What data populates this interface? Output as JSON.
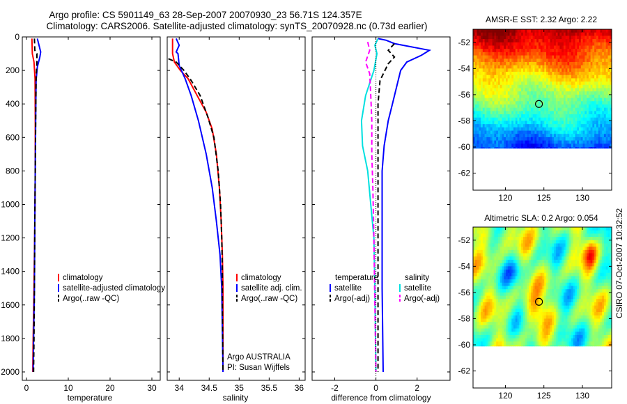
{
  "title_line1": "Argo profile: CS 5901149_63 28-Sep-2007 20070930_23 56.71S 124.357E",
  "title_line2": "Climatology: CARS2006. Satellite-adjusted climatology: synTS_20070928.nc (0.73d earlier)",
  "chart_data": [
    {
      "type": "line",
      "xlabel": "temperature",
      "xlim": [
        -1,
        32
      ],
      "ylim": [
        0,
        2050
      ],
      "y_reversed": true,
      "xticks": [
        0,
        10,
        20,
        30
      ],
      "yticks": [
        0,
        200,
        400,
        600,
        800,
        1000,
        1200,
        1400,
        1600,
        1800,
        2000
      ],
      "legend": "center",
      "series": [
        {
          "name": "climatology",
          "color": "#ff0000",
          "style": "solid",
          "points": [
            [
              1.3,
              10
            ],
            [
              1.4,
              100
            ],
            [
              1.8,
              150
            ],
            [
              2.05,
              250
            ],
            [
              2.1,
              500
            ],
            [
              2.1,
              800
            ],
            [
              2.0,
              1100
            ],
            [
              1.8,
              1500
            ],
            [
              1.6,
              1800
            ],
            [
              1.5,
              2000
            ]
          ]
        },
        {
          "name": "satellite-adjusted climatology",
          "color": "#0000ff",
          "style": "solid",
          "points": [
            [
              2.6,
              10
            ],
            [
              3.4,
              90
            ],
            [
              3.2,
              120
            ],
            [
              2.6,
              180
            ],
            [
              2.3,
              260
            ],
            [
              2.2,
              500
            ],
            [
              2.1,
              800
            ],
            [
              2.0,
              1100
            ],
            [
              1.9,
              1500
            ],
            [
              1.7,
              1800
            ],
            [
              1.6,
              2000
            ]
          ]
        },
        {
          "name": "Argo(..raw -QC)",
          "color": "#000000",
          "style": "dashed",
          "points": [
            [
              1.9,
              10
            ],
            [
              2.0,
              80
            ],
            [
              2.5,
              100
            ],
            [
              2.5,
              150
            ],
            [
              2.3,
              250
            ],
            [
              2.2,
              500
            ],
            [
              2.1,
              800
            ],
            [
              2.0,
              1100
            ],
            [
              1.9,
              1500
            ],
            [
              1.8,
              1800
            ],
            [
              1.7,
              2000
            ]
          ]
        }
      ]
    },
    {
      "type": "line",
      "xlabel": "salinity",
      "xlim": [
        33.8,
        36.1
      ],
      "ylim": [
        0,
        2050
      ],
      "y_reversed": true,
      "xticks": [
        34,
        34.5,
        35,
        35.5,
        36
      ],
      "legend": "center-right",
      "annotation": [
        "Argo AUSTRALIA",
        "PI: Susan Wijffels"
      ],
      "series": [
        {
          "name": "climatology",
          "color": "#ff0000",
          "style": "solid",
          "points": [
            [
              33.89,
              10
            ],
            [
              33.89,
              100
            ],
            [
              33.92,
              150
            ],
            [
              34.02,
              200
            ],
            [
              34.15,
              250
            ],
            [
              34.3,
              350
            ],
            [
              34.45,
              450
            ],
            [
              34.55,
              550
            ],
            [
              34.62,
              700
            ],
            [
              34.67,
              900
            ],
            [
              34.7,
              1100
            ],
            [
              34.72,
              1300
            ],
            [
              34.73,
              1500
            ],
            [
              34.73,
              2000
            ]
          ]
        },
        {
          "name": "satellite adj. clim.",
          "color": "#0000ff",
          "style": "solid",
          "points": [
            [
              33.95,
              10
            ],
            [
              34.0,
              50
            ],
            [
              33.95,
              90
            ],
            [
              33.98,
              100
            ],
            [
              34.0,
              170
            ],
            [
              34.1,
              250
            ],
            [
              34.2,
              350
            ],
            [
              34.32,
              500
            ],
            [
              34.45,
              700
            ],
            [
              34.55,
              900
            ],
            [
              34.62,
              1100
            ],
            [
              34.68,
              1300
            ],
            [
              34.71,
              1500
            ],
            [
              34.73,
              2000
            ]
          ]
        },
        {
          "name": "Argo(..raw -QC)",
          "color": "#000000",
          "style": "dashed",
          "points": [
            [
              33.82,
              130
            ],
            [
              33.95,
              150
            ],
            [
              34.08,
              200
            ],
            [
              34.2,
              260
            ],
            [
              34.35,
              350
            ],
            [
              34.48,
              480
            ],
            [
              34.58,
              600
            ],
            [
              34.65,
              800
            ],
            [
              34.69,
              1000
            ],
            [
              34.71,
              1200
            ],
            [
              34.72,
              1400
            ],
            [
              34.72,
              1600
            ],
            [
              34.73,
              2000
            ]
          ]
        }
      ]
    },
    {
      "type": "line",
      "xlabel": "difference from climatology",
      "xlim": [
        -3.1,
        3.6
      ],
      "ylim": [
        0,
        2050
      ],
      "y_reversed": true,
      "xticks": [
        -2,
        0,
        2
      ],
      "legend": "center",
      "legend_headers": [
        "temperature",
        "salinity"
      ],
      "series": [
        {
          "name": "satellite",
          "group": "temperature",
          "color": "#0000ff",
          "style": "solid",
          "points": [
            [
              0.1,
              10
            ],
            [
              0.5,
              20
            ],
            [
              0.9,
              40
            ],
            [
              2.6,
              80
            ],
            [
              2.2,
              110
            ],
            [
              1.5,
              150
            ],
            [
              1.2,
              200
            ],
            [
              1.0,
              300
            ],
            [
              0.8,
              400
            ],
            [
              0.6,
              500
            ],
            [
              0.4,
              650
            ],
            [
              0.3,
              800
            ],
            [
              0.3,
              1000
            ],
            [
              0.3,
              1500
            ],
            [
              0.35,
              2000
            ]
          ]
        },
        {
          "name": "Argo(-adj)",
          "group": "temperature",
          "color": "#000000",
          "style": "dashed",
          "points": [
            [
              0.9,
              40
            ],
            [
              0.6,
              80
            ],
            [
              0.9,
              120
            ],
            [
              0.6,
              160
            ],
            [
              0.2,
              260
            ],
            [
              0.1,
              400
            ],
            [
              0.1,
              700
            ],
            [
              0.1,
              1200
            ],
            [
              0.1,
              2000
            ]
          ]
        },
        {
          "name": "satellite",
          "group": "salinity",
          "color": "#00e0e0",
          "style": "solid",
          "points": [
            [
              0.1,
              10
            ],
            [
              -0.05,
              50
            ],
            [
              0.05,
              100
            ],
            [
              -0.1,
              200
            ],
            [
              -0.5,
              350
            ],
            [
              -0.7,
              500
            ],
            [
              -0.65,
              650
            ],
            [
              -0.4,
              800
            ],
            [
              -0.25,
              1000
            ],
            [
              -0.1,
              1200
            ],
            [
              -0.05,
              1500
            ],
            [
              0.0,
              2000
            ]
          ]
        },
        {
          "name": "Argo(-adj)",
          "group": "salinity",
          "color": "#ff00ff",
          "style": "dashed",
          "points": [
            [
              -0.4,
              30
            ],
            [
              -0.3,
              80
            ],
            [
              -0.5,
              150
            ],
            [
              -0.3,
              220
            ],
            [
              -0.25,
              350
            ],
            [
              -0.2,
              500
            ],
            [
              -0.2,
              700
            ],
            [
              -0.15,
              900
            ],
            [
              -0.1,
              1200
            ],
            [
              -0.05,
              1600
            ],
            [
              0.0,
              2000
            ]
          ]
        }
      ]
    },
    {
      "type": "heatmap",
      "title": "AMSR-E SST: 2.32 Argo: 2.22",
      "xlim": [
        115.8,
        133.8
      ],
      "ylim": [
        -63.3,
        -51.0
      ],
      "xticks": [
        120,
        125,
        130
      ],
      "yticks": [
        -52,
        -54,
        -56,
        -58,
        -60,
        -62
      ],
      "marker": [
        124.357,
        -56.71
      ],
      "no_data_below": -60.1,
      "colormap": "jet"
    },
    {
      "type": "heatmap",
      "title": "Altimetric SLA: 0.2 Argo: 0.054",
      "xlim": [
        115.8,
        133.8
      ],
      "ylim": [
        -63.3,
        -51.0
      ],
      "xticks": [
        120,
        125,
        130
      ],
      "yticks": [
        -52,
        -54,
        -56,
        -58,
        -60,
        -62
      ],
      "marker": [
        124.357,
        -56.71
      ],
      "no_data_below": -60.1,
      "colormap": "jet"
    }
  ],
  "footer_vertical": "CSIRO 07-Oct-2007 10:32:52"
}
